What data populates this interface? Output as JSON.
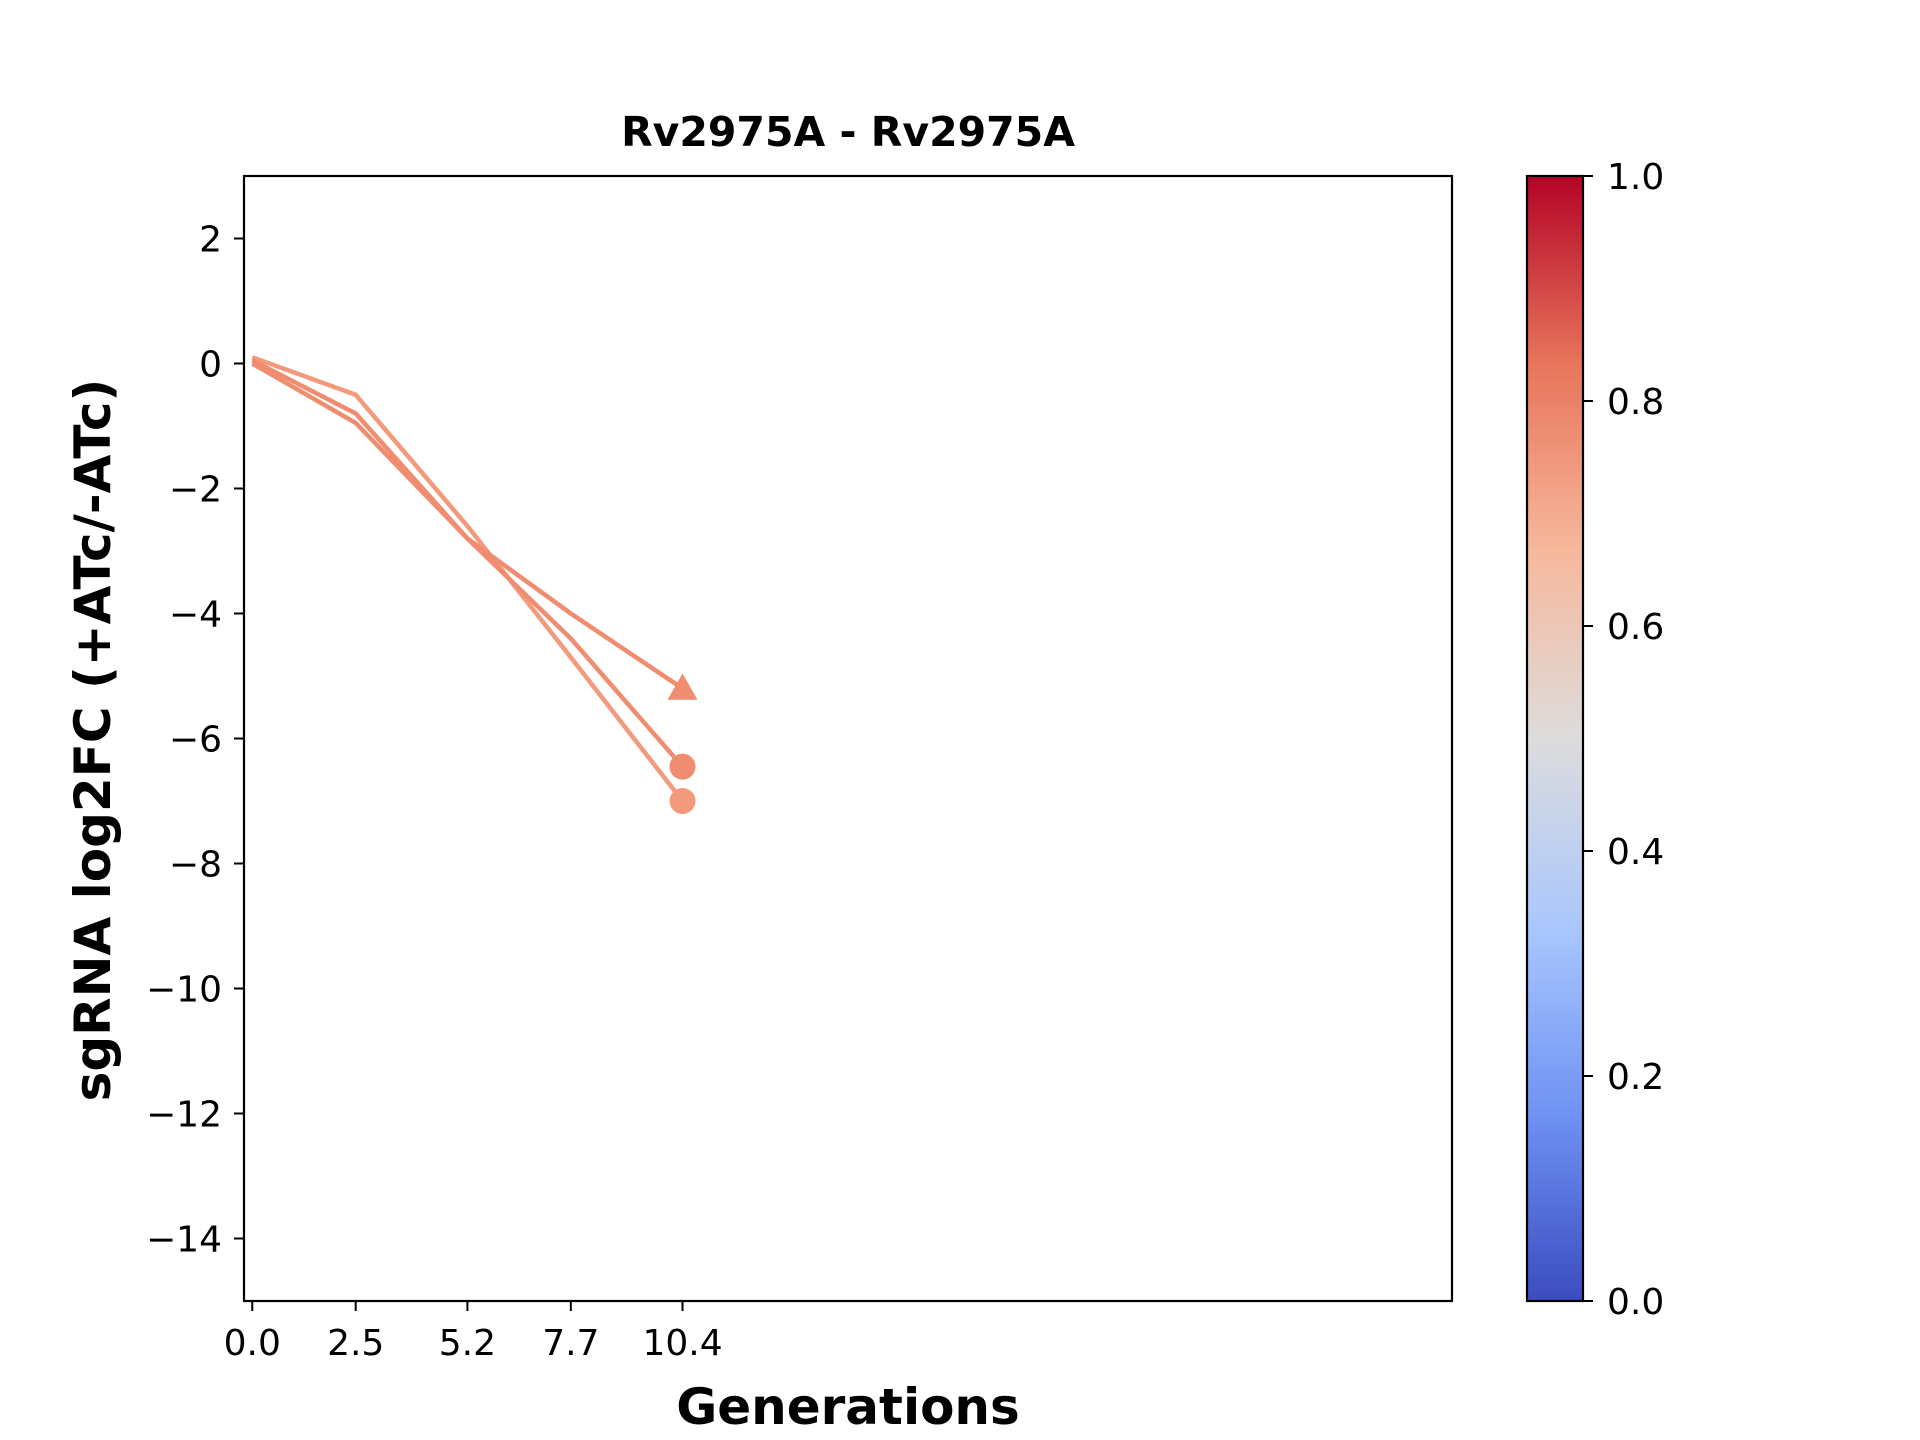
{
  "chart_data": {
    "type": "line",
    "title": "Rv2975A - Rv2975A",
    "xlabel": "Generations",
    "ylabel": "sgRNA log2FC (+ATc/-ATc)",
    "x_ticks": [
      "0.0",
      "2.5",
      "5.2",
      "7.7",
      "10.4"
    ],
    "x_tick_values": [
      0.0,
      2.5,
      5.2,
      7.7,
      10.4
    ],
    "xlim": [
      -0.2,
      29.0
    ],
    "y_ticks": [
      "2",
      "0",
      "−2",
      "−4",
      "−6",
      "−8",
      "−10",
      "−12",
      "−14"
    ],
    "y_tick_values": [
      2,
      0,
      -2,
      -4,
      -6,
      -8,
      -10,
      -12,
      -14
    ],
    "ylim": [
      -15,
      3
    ],
    "grid": false,
    "series": [
      {
        "x": [
          0.0,
          2.5,
          5.2,
          7.7,
          10.4
        ],
        "y": [
          0.1,
          -0.5,
          -2.6,
          -4.7,
          -7.0
        ],
        "marker": "circle",
        "color": "#f39a7c",
        "colorbar_value": 0.74
      },
      {
        "x": [
          0.0,
          2.5,
          5.2,
          7.7,
          10.4
        ],
        "y": [
          0.05,
          -0.8,
          -2.8,
          -4.4,
          -6.45
        ],
        "marker": "circle",
        "color": "#f08c70",
        "colorbar_value": 0.77
      },
      {
        "x": [
          0.0,
          2.5,
          5.2,
          7.7,
          10.4
        ],
        "y": [
          0.0,
          -0.95,
          -2.8,
          -4.0,
          -5.2
        ],
        "marker": "triangle",
        "color": "#f08c70",
        "colorbar_value": 0.77
      }
    ],
    "colorbar": {
      "cmap": "coolwarm",
      "range": [
        0.0,
        1.0
      ],
      "ticks": [
        "0.0",
        "0.2",
        "0.4",
        "0.6",
        "0.8",
        "1.0"
      ],
      "tick_values": [
        0.0,
        0.2,
        0.4,
        0.6,
        0.8,
        1.0
      ],
      "stops": [
        "#3b4cc0",
        "#6f92f3",
        "#aac7fd",
        "#dddcdc",
        "#f7b89c",
        "#e7745b",
        "#b40426"
      ]
    }
  }
}
